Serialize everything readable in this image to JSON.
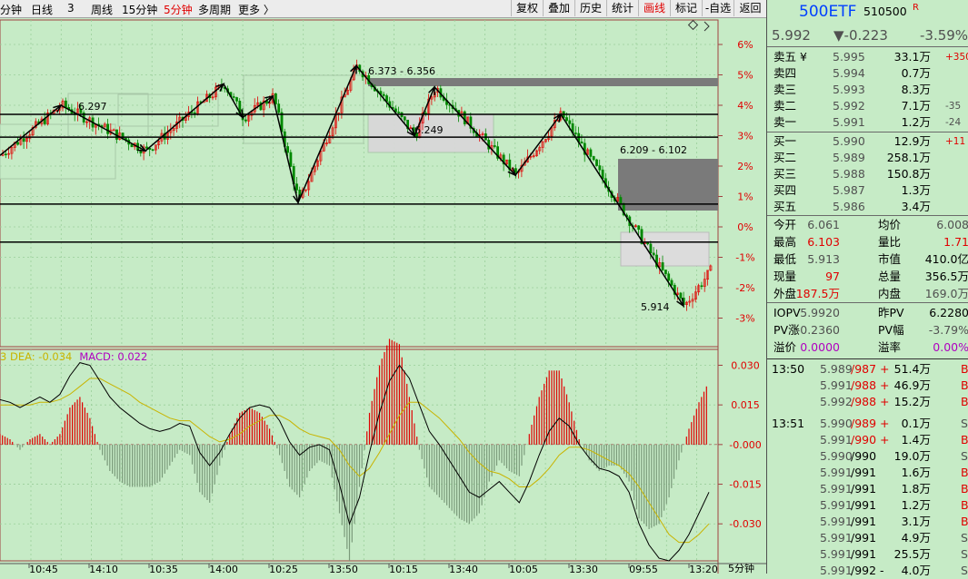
{
  "toolbar": {
    "periods": [
      {
        "label": "分钟",
        "active": false
      },
      {
        "label": "日线",
        "active": false
      },
      {
        "label": "3",
        "active": false
      },
      {
        "label": "周线",
        "active": false
      },
      {
        "label": "15分钟",
        "active": false
      },
      {
        "label": "5分钟",
        "active": true
      },
      {
        "label": "多周期",
        "active": false
      },
      {
        "label": "更多 〉",
        "active": false
      }
    ],
    "tools": [
      {
        "label": "复权",
        "active": false
      },
      {
        "label": "叠加",
        "active": false
      },
      {
        "label": "历史",
        "active": false
      },
      {
        "label": "统计",
        "active": false
      },
      {
        "label": "画线",
        "active": true
      },
      {
        "label": "标记",
        "active": false
      },
      {
        "label": "-自选",
        "active": false
      },
      {
        "label": "返回",
        "active": false
      }
    ]
  },
  "chart_data": [
    {
      "type": "candlestick",
      "name": "price",
      "y_ticks": [
        "6%",
        "5%",
        "4%",
        "3%",
        "2%",
        "1%",
        "0%",
        "-1%",
        "-2%",
        "-3%"
      ],
      "annotations": [
        "6.297",
        "6.373 - 6.356",
        "6.249",
        "6.209 - 6.102",
        "5.914"
      ],
      "zigzag": [
        2.35,
        4.0,
        2.5,
        4.7,
        3.6,
        4.3,
        0.8,
        5.3,
        3.0,
        4.6,
        1.7,
        3.7,
        -2.6
      ],
      "levels": [
        3.7,
        2.95,
        0.75,
        -0.5
      ]
    },
    {
      "type": "macd",
      "legend": {
        "dea_prefix": "3  DEA: ",
        "dea": "-0.034",
        "macd_prefix": "MACD: ",
        "macd": "0.022"
      },
      "y_ticks": [
        "0.030",
        "0.015",
        "-0.000",
        "-0.015",
        "-0.030"
      ],
      "ylim": [
        -0.044,
        0.036
      ],
      "dif": [
        0.017,
        0.016,
        0.014,
        0.016,
        0.018,
        0.016,
        0.019,
        0.026,
        0.031,
        0.03,
        0.024,
        0.018,
        0.014,
        0.011,
        0.008,
        0.006,
        0.005,
        0.006,
        0.008,
        0.007,
        -0.003,
        -0.008,
        -0.003,
        0.004,
        0.01,
        0.014,
        0.015,
        0.014,
        0.009,
        0.001,
        -0.004,
        -0.001,
        0.0,
        -0.002,
        -0.015,
        -0.03,
        -0.02,
        -0.003,
        0.012,
        0.024,
        0.03,
        0.025,
        0.015,
        0.005,
        0.0,
        -0.006,
        -0.012,
        -0.018,
        -0.02,
        -0.017,
        -0.014,
        -0.018,
        -0.022,
        -0.014,
        -0.004,
        0.005,
        0.01,
        0.007,
        0.0,
        -0.005,
        -0.009,
        -0.01,
        -0.012,
        -0.018,
        -0.03,
        -0.038,
        -0.043,
        -0.044,
        -0.04,
        -0.034,
        -0.026,
        -0.018
      ],
      "dea": [
        0.015,
        0.015,
        0.015,
        0.015,
        0.016,
        0.016,
        0.017,
        0.019,
        0.022,
        0.025,
        0.025,
        0.023,
        0.021,
        0.019,
        0.016,
        0.014,
        0.012,
        0.01,
        0.009,
        0.009,
        0.006,
        0.003,
        0.001,
        0.002,
        0.004,
        0.007,
        0.009,
        0.011,
        0.011,
        0.009,
        0.006,
        0.004,
        0.003,
        0.002,
        -0.002,
        -0.008,
        -0.012,
        -0.009,
        -0.003,
        0.004,
        0.011,
        0.016,
        0.016,
        0.013,
        0.01,
        0.006,
        0.002,
        -0.003,
        -0.007,
        -0.01,
        -0.011,
        -0.013,
        -0.016,
        -0.016,
        -0.013,
        -0.009,
        -0.004,
        -0.001,
        -0.001,
        -0.002,
        -0.004,
        -0.006,
        -0.008,
        -0.011,
        -0.016,
        -0.022,
        -0.028,
        -0.034,
        -0.037,
        -0.037,
        -0.034,
        -0.03
      ]
    }
  ],
  "time_axis": [
    "10:45",
    "14:10",
    "10:35",
    "14:00",
    "10:25",
    "13:50",
    "10:15",
    "13:40",
    "10:05",
    "13:30",
    "09:55",
    "13:20"
  ],
  "period_label": "5分钟",
  "quote": {
    "name": "500ETF",
    "code": "510500",
    "badge": "R",
    "price": "5.992",
    "change": "▼-0.223",
    "change_pct": "-3.59%",
    "sells": [
      {
        "label": "卖五 ¥",
        "price": "5.995",
        "vol": "33.1万",
        "delta": "+350"
      },
      {
        "label": "卖四",
        "price": "5.994",
        "vol": "0.7万",
        "delta": ""
      },
      {
        "label": "卖三",
        "price": "5.993",
        "vol": "8.3万",
        "delta": ""
      },
      {
        "label": "卖二",
        "price": "5.992",
        "vol": "7.1万",
        "delta": "-35"
      },
      {
        "label": "卖一",
        "price": "5.991",
        "vol": "1.2万",
        "delta": "-24"
      }
    ],
    "buys": [
      {
        "label": "买一",
        "price": "5.990",
        "vol": "12.9万",
        "delta": "+11"
      },
      {
        "label": "买二",
        "price": "5.989",
        "vol": "258.1万",
        "delta": ""
      },
      {
        "label": "买三",
        "price": "5.988",
        "vol": "150.8万",
        "delta": ""
      },
      {
        "label": "买四",
        "price": "5.987",
        "vol": "1.3万",
        "delta": ""
      },
      {
        "label": "买五",
        "price": "5.986",
        "vol": "3.4万",
        "delta": ""
      }
    ],
    "stats": [
      {
        "l1": "今开",
        "v1": "6.061",
        "l2": "均价",
        "v2": "6.008"
      },
      {
        "l1": "最高",
        "v1": "6.103",
        "l2": "量比",
        "v2": "1.71"
      },
      {
        "l1": "最低",
        "v1": "5.913",
        "l2": "市值",
        "v2": "410.0亿"
      },
      {
        "l1": "现量",
        "v1": "97",
        "l2": "总量",
        "v2": "356.5万"
      },
      {
        "l1": "外盘",
        "v1": "187.5万",
        "l2": "内盘",
        "v2": "169.0万"
      }
    ],
    "iopv": [
      {
        "l1": "IOPV",
        "v1": "5.9920",
        "l2": "昨PV",
        "v2": "6.2280"
      },
      {
        "l1": "PV涨",
        "v1": "-0.2360",
        "l2": "PV幅",
        "v2": "-3.79%"
      },
      {
        "l1": "溢价",
        "v1": "0.0000",
        "l2": "溢率",
        "v2": "0.00%"
      }
    ]
  },
  "ticks": [
    {
      "time": "13:50",
      "price": "5.989",
      "seq": "/987 +",
      "vol": "51.4万",
      "side": "B"
    },
    {
      "time": "",
      "price": "5.991",
      "seq": "/988 +",
      "vol": "46.9万",
      "side": "B"
    },
    {
      "time": "",
      "price": "5.992",
      "seq": "/988 +",
      "vol": "15.2万",
      "side": "B"
    },
    {
      "time": "13:51",
      "price": "5.990",
      "seq": "/989 +",
      "vol": "0.1万",
      "side": "S"
    },
    {
      "time": "",
      "price": "5.991",
      "seq": "/990 +",
      "vol": "1.4万",
      "side": "B"
    },
    {
      "time": "",
      "price": "5.990",
      "seq": "/990",
      "vol": "19.0万",
      "side": "S"
    },
    {
      "time": "",
      "price": "5.991",
      "seq": "/991",
      "vol": "1.6万",
      "side": "B"
    },
    {
      "time": "",
      "price": "5.991",
      "seq": "/991",
      "vol": "1.8万",
      "side": "B"
    },
    {
      "time": "",
      "price": "5.991",
      "seq": "/991",
      "vol": "1.2万",
      "side": "B"
    },
    {
      "time": "",
      "price": "5.991",
      "seq": "/991",
      "vol": "3.1万",
      "side": "B"
    },
    {
      "time": "",
      "price": "5.991",
      "seq": "/991",
      "vol": "4.9万",
      "side": "S"
    },
    {
      "time": "",
      "price": "5.991",
      "seq": "/991",
      "vol": "25.5万",
      "side": "S"
    },
    {
      "time": "",
      "price": "5.991",
      "seq": "/992 -",
      "vol": "4.0万",
      "side": "S"
    }
  ],
  "colors": {
    "bg": "#c6ebc6",
    "up": "#e00000",
    "down": "#008800",
    "dif": "#000000",
    "dea": "#c8b400",
    "macd_label": "#b000c0"
  }
}
